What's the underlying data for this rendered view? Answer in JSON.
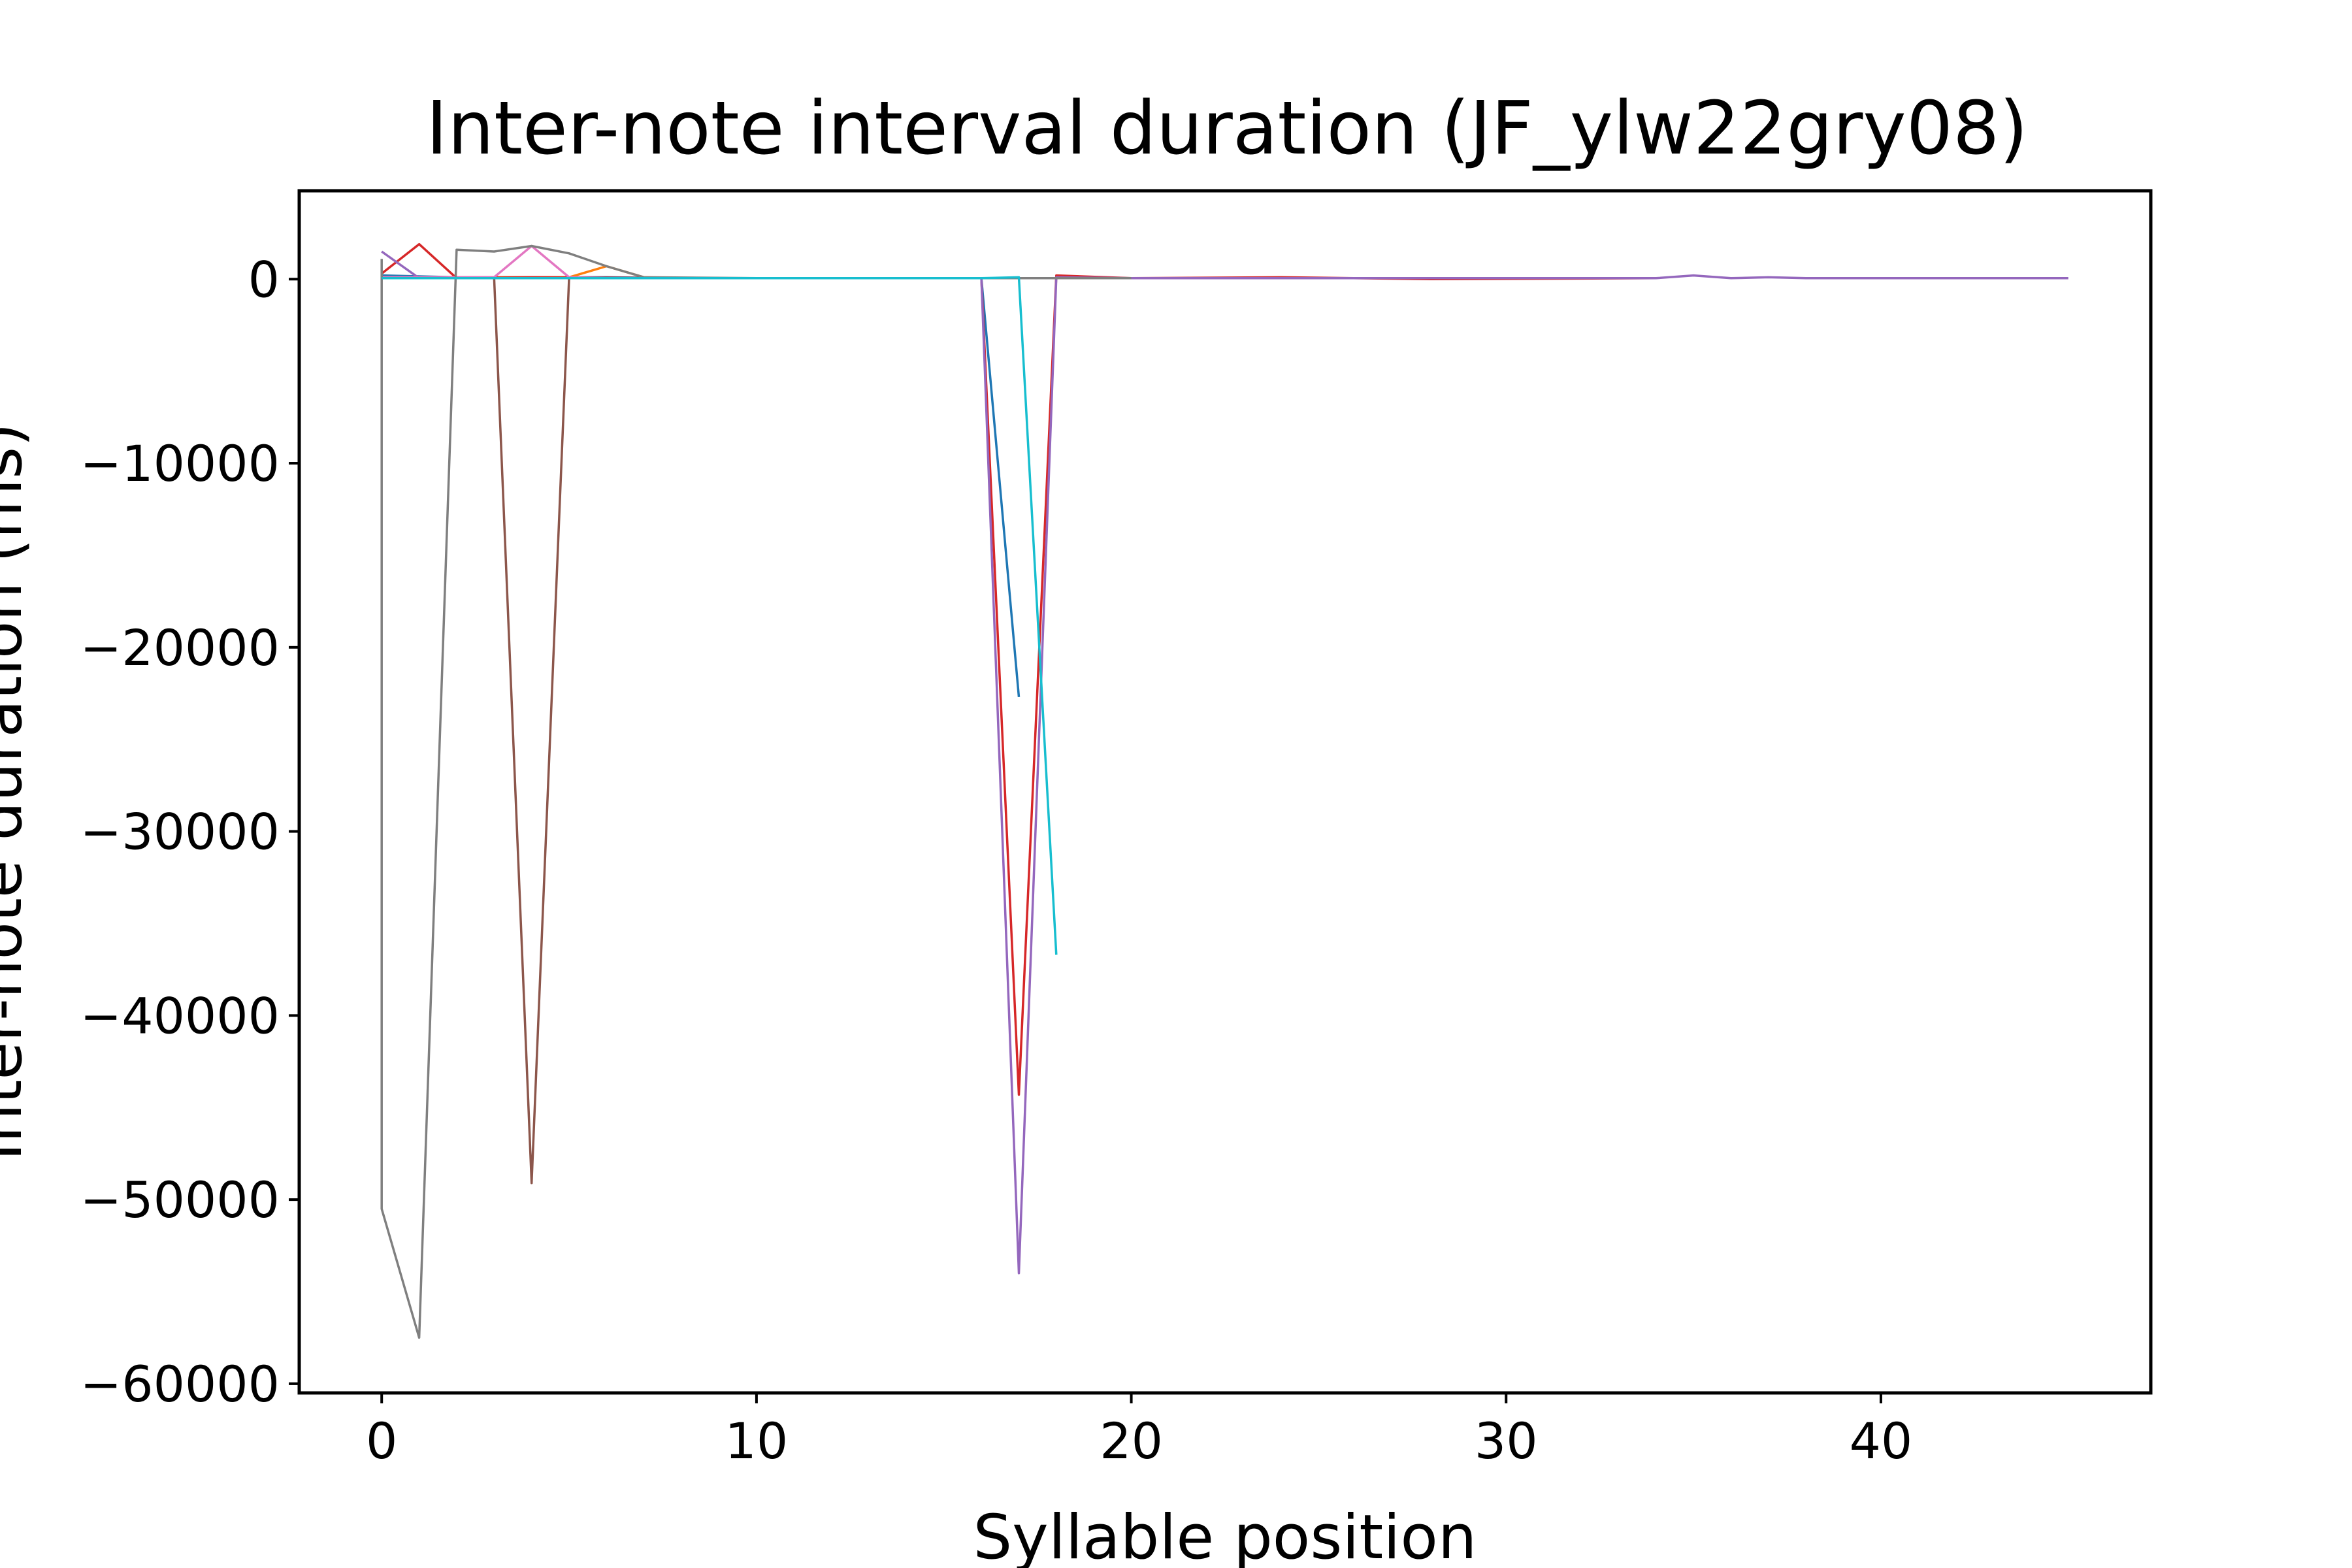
{
  "chart_data": {
    "type": "line",
    "title": "Inter-note interval duration (JF_ylw22gry08)",
    "xlabel": "Syllable position",
    "ylabel": "Inter-note duration (ms)",
    "xlim": [
      -2.2,
      47.2
    ],
    "ylim": [
      -60500,
      4800
    ],
    "xticks": [
      0,
      10,
      20,
      30,
      40
    ],
    "xtick_labels": [
      "0",
      "10",
      "20",
      "30",
      "40"
    ],
    "yticks": [
      0,
      -10000,
      -20000,
      -30000,
      -40000,
      -50000,
      -60000
    ],
    "ytick_labels": [
      "0",
      "−10000",
      "−20000",
      "−30000",
      "−40000",
      "−50000",
      "−60000"
    ],
    "grid": false,
    "legend": "none",
    "series": [
      {
        "color": "#1f77b4",
        "x": [
          0,
          2,
          4,
          6,
          8,
          10,
          12,
          14,
          16,
          17
        ],
        "y": [
          200,
          100,
          100,
          100,
          50,
          50,
          50,
          50,
          50,
          -22700
        ]
      },
      {
        "color": "#ff7f0e",
        "x": [
          0,
          2,
          4,
          5,
          6,
          7,
          8,
          10
        ],
        "y": [
          100,
          100,
          100,
          100,
          700,
          100,
          50,
          50
        ]
      },
      {
        "color": "#d62728",
        "x": [
          0,
          1,
          2,
          4,
          8,
          12,
          16,
          17,
          18,
          20,
          24,
          28,
          34
        ],
        "y": [
          300,
          1900,
          50,
          100,
          50,
          50,
          50,
          -44300,
          200,
          50,
          100,
          0,
          50
        ]
      },
      {
        "color": "#9467bd",
        "x": [
          0,
          1,
          2,
          8,
          16,
          17,
          18,
          20,
          30,
          34,
          35,
          36,
          37,
          38,
          45
        ],
        "y": [
          1500,
          50,
          50,
          50,
          50,
          -54000,
          100,
          50,
          50,
          50,
          200,
          50,
          100,
          50,
          50
        ]
      },
      {
        "color": "#8c564b",
        "x": [
          0,
          2,
          3,
          4,
          5,
          6,
          8
        ],
        "y": [
          100,
          100,
          100,
          -49100,
          100,
          50,
          50
        ]
      },
      {
        "color": "#e377c2",
        "x": [
          0,
          2,
          3,
          4,
          5,
          6
        ],
        "y": [
          100,
          100,
          100,
          1800,
          100,
          50
        ]
      },
      {
        "color": "#7f7f7f",
        "x": [
          0,
          0,
          1,
          2,
          3,
          4,
          5,
          6,
          7,
          10,
          14,
          18,
          20
        ],
        "y": [
          1100,
          -50500,
          -57500,
          1600,
          1500,
          1800,
          1400,
          700,
          100,
          50,
          50,
          50,
          50
        ]
      },
      {
        "color": "#17becf",
        "x": [
          0,
          4,
          8,
          12,
          16,
          17,
          18
        ],
        "y": [
          50,
          50,
          50,
          50,
          50,
          100,
          -36700
        ]
      }
    ]
  }
}
